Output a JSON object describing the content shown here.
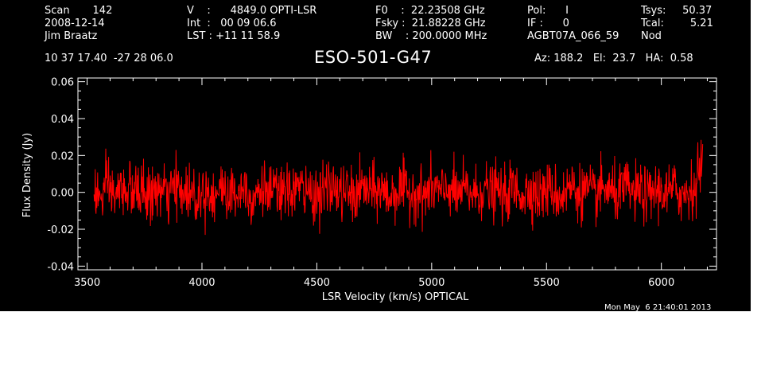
{
  "header": {
    "scan": "Scan       142",
    "date": "2008-12-14",
    "observer": "Jim Braatz",
    "velocity": "V    :      4849.0 OPTI-LSR",
    "int": "Int  :   00 09 06.6",
    "lst": "LST : +11 11 58.9",
    "f0": "F0    :  22.23508 GHz",
    "fsky": "Fsky :  21.88228 GHz",
    "bw": "BW    : 200.0000 MHz",
    "pol": "Pol:      I",
    "if": "IF :      0",
    "project": "AGBT07A_066_59",
    "tsys": "Tsys:     50.37",
    "tcal": "Tcal:        5.21",
    "nod": "Nod",
    "coords": "10 37 17.40  -27 28 06.0",
    "source": "ESO-501-G47",
    "azelha": "Az: 188.2   El:  23.7   HA:  0.58"
  },
  "timestamp": "Mon May  6 21:40:01 2013",
  "colors": {
    "background": "#000000",
    "foreground": "#ffffff",
    "series": "#ff0000"
  },
  "chart_data": {
    "type": "line",
    "xlabel": "LSR Velocity (km/s) OPTICAL",
    "ylabel": "Flux Density (Jy)",
    "xlim": [
      3460,
      6240
    ],
    "ylim": [
      -0.042,
      0.062
    ],
    "xticks": [
      3500,
      4000,
      4500,
      5000,
      5500,
      6000
    ],
    "xtick_labels": [
      "3500",
      "4000",
      "4500",
      "5000",
      "5500",
      "6000"
    ],
    "yticks": [
      -0.04,
      -0.02,
      0.0,
      0.02,
      0.04,
      0.06
    ],
    "ytick_labels": [
      "-0.04",
      "-0.02",
      "0.00",
      "0.02",
      "0.04",
      "0.06"
    ],
    "grid": false,
    "series": [
      {
        "x_start": 3530,
        "x_end": 6180,
        "noise_sigma": 0.0075,
        "values": [
          0.004,
          -0.012,
          0.01,
          -0.006,
          0.002,
          0.008,
          -0.004,
          0.006,
          -0.01,
          0.003,
          0.001,
          -0.005,
          0.009,
          -0.002,
          0.004,
          -0.008,
          0.005,
          0.0,
          -0.003,
          0.007,
          -0.006,
          0.002,
          0.01,
          -0.009,
          0.003,
          0.006,
          -0.004,
          0.001,
          -0.007,
          0.005,
          0.008,
          -0.002,
          0.0,
          -0.006,
          0.004,
          0.009,
          -0.005,
          0.002,
          -0.01,
          0.006,
          0.003,
          -0.001,
          0.007,
          -0.008,
          0.001,
          0.005,
          -0.003,
          0.004,
          -0.006,
          0.002,
          0.006,
          -0.004,
          0.01,
          -0.007,
          0.003,
          0.0,
          -0.005,
          0.008,
          -0.002,
          0.004,
          -0.009,
          0.006,
          0.001,
          -0.003,
          0.007,
          -0.006,
          0.002,
          0.005,
          -0.008,
          0.003,
          0.009,
          -0.001,
          0.004,
          -0.007,
          0.002,
          0.006,
          -0.004,
          0.0,
          0.008,
          -0.005,
          0.003,
          -0.009,
          0.005,
          0.001,
          -0.002,
          0.007,
          -0.006,
          0.004,
          0.01,
          0.028
        ]
      }
    ]
  }
}
